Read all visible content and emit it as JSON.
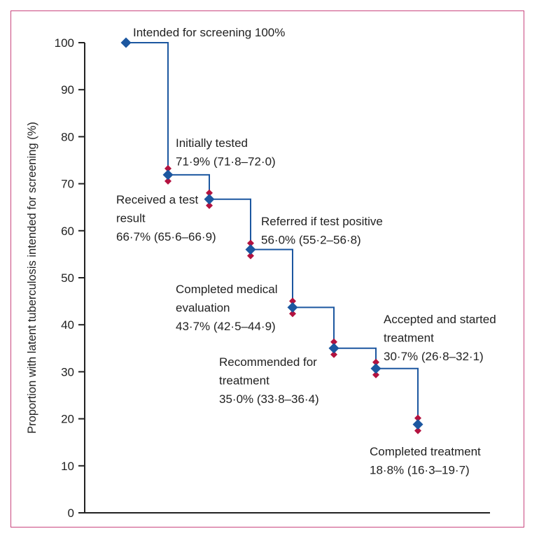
{
  "chart_data": {
    "type": "line",
    "subtype": "step",
    "title": "",
    "xlabel": "",
    "ylabel": "Proportion with latent tuberculosis intended for screening (%)",
    "ylim": [
      0,
      100
    ],
    "yticks": [
      "0",
      "10",
      "20",
      "30",
      "40",
      "50",
      "60",
      "70",
      "80",
      "90",
      "100"
    ],
    "grid": false,
    "steps": [
      {
        "name": "Intended for screening",
        "value": 100,
        "ci": null,
        "label_lines": [
          "Intended for screening 100%"
        ]
      },
      {
        "name": "Initially tested",
        "value": 71.9,
        "ci": [
          71.8,
          72.0
        ],
        "label_lines": [
          "Initially tested",
          "71·9% (71·8–72·0)"
        ]
      },
      {
        "name": "Received a test result",
        "value": 66.7,
        "ci": [
          65.6,
          66.9
        ],
        "label_lines": [
          "Received a test",
          "result",
          "66·7% (65·6–66·9)"
        ]
      },
      {
        "name": "Referred if test positive",
        "value": 56.0,
        "ci": [
          55.2,
          56.8
        ],
        "label_lines": [
          "Referred if test positive",
          "56·0% (55·2–56·8)"
        ]
      },
      {
        "name": "Completed medical evaluation",
        "value": 43.7,
        "ci": [
          42.5,
          44.9
        ],
        "label_lines": [
          "Completed medical",
          "evaluation",
          "43·7% (42·5–44·9)"
        ]
      },
      {
        "name": "Recommended for treatment",
        "value": 35.0,
        "ci": [
          33.8,
          36.4
        ],
        "label_lines": [
          "Recommended for",
          "treatment",
          "35·0% (33·8–36·4)"
        ]
      },
      {
        "name": "Accepted and started treatment",
        "value": 30.7,
        "ci": [
          26.8,
          32.1
        ],
        "label_lines": [
          "Accepted and started",
          "treatment",
          "30·7% (26·8–32·1)"
        ]
      },
      {
        "name": "Completed treatment",
        "value": 18.8,
        "ci": [
          16.3,
          19.7
        ],
        "label_lines": [
          "Completed treatment",
          "18·8% (16·3–19·7)"
        ]
      }
    ],
    "colors": {
      "line": "#1c57a0",
      "point": "#1c57a0",
      "ci_marker": "#b3123f",
      "frame": "#c9467e",
      "axis": "#222222"
    }
  }
}
